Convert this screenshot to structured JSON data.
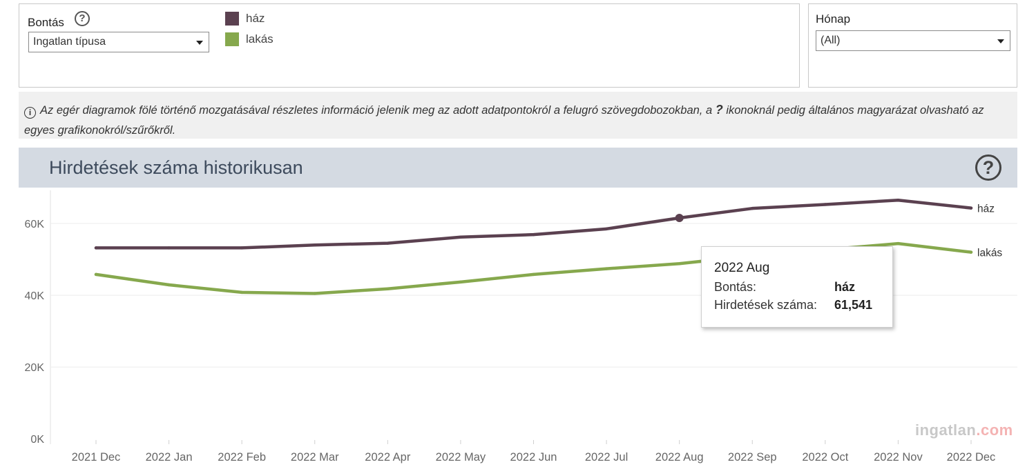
{
  "filters": {
    "breakdown_label": "Bontás",
    "breakdown_help_icon": "question-circle-icon",
    "breakdown_value": "Ingatlan típusa",
    "month_label": "Hónap",
    "month_value": "(All)"
  },
  "legend": [
    {
      "label": "ház",
      "color": "#5b4150"
    },
    {
      "label": "lakás",
      "color": "#86a84d"
    }
  ],
  "info": {
    "icon": "info-circle-icon",
    "text_before": "Az egér diagramok fölé történő mozgatásával részletes információ jelenik meg az adott adatpontokról a felugró  szövegdobozokban, a ",
    "question_mark": "?",
    "text_after": " ikonoknál pedig általános magyarázat olvasható  az egyes grafikonokról/szűrőkről."
  },
  "chart_header": {
    "title": "Hirdetések száma historikusan",
    "help_icon": "question-circle-icon"
  },
  "tooltip": {
    "title": "2022 Aug",
    "rows": [
      {
        "key": "Bontás:",
        "value": "ház"
      },
      {
        "key": "Hirdetések száma:",
        "value": "61,541"
      }
    ]
  },
  "watermark": {
    "part1": "ingatlan",
    "part2": ".com"
  },
  "chart_data": {
    "type": "line",
    "x": [
      "2021 Dec",
      "2022 Jan",
      "2022 Feb",
      "2022 Mar",
      "2022 Apr",
      "2022 May",
      "2022 Jun",
      "2022 Jul",
      "2022 Aug",
      "2022 Sep",
      "2022 Oct",
      "2022 Nov",
      "2022 Dec"
    ],
    "series": [
      {
        "name": "ház",
        "color": "#5b4150",
        "values": [
          53200,
          53200,
          53200,
          54000,
          54500,
          56200,
          56900,
          58500,
          61541,
          64200,
          65300,
          66500,
          64300
        ]
      },
      {
        "name": "lakás",
        "color": "#86a84d",
        "values": [
          45800,
          42900,
          40800,
          40500,
          41800,
          43700,
          45800,
          47400,
          48800,
          51000,
          52700,
          54400,
          52000
        ]
      }
    ],
    "ylim": [
      -1500,
      70000
    ],
    "y_ticks": [
      0,
      20000,
      40000,
      60000
    ],
    "y_tick_labels": [
      "0K",
      "20K",
      "40K",
      "60K"
    ],
    "highlight": {
      "series": "ház",
      "x": "2022 Aug"
    },
    "grid": true,
    "line_end_labels": true
  }
}
